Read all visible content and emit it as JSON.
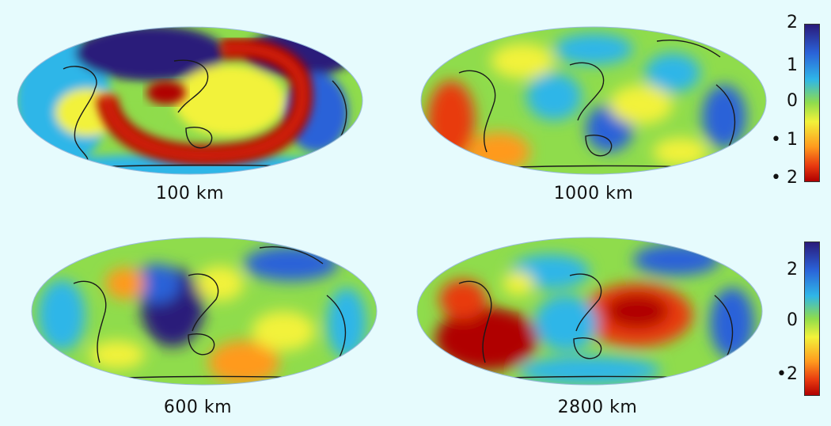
{
  "panels": [
    {
      "depth_label": "100 km"
    },
    {
      "depth_label": "1000 km"
    },
    {
      "depth_label": "600 km"
    },
    {
      "depth_label": "2800 km"
    }
  ],
  "colorbar_top": {
    "ticks": [
      "2",
      "1",
      "0",
      "• 1",
      "• 2"
    ]
  },
  "colorbar_bottom": {
    "ticks": [
      "2",
      "0",
      "•2"
    ]
  },
  "colors": {
    "background": "#e6fbfd",
    "slow_dark": "#b00000",
    "slow": "#e83a10",
    "warm": "#ff9a1e",
    "neutral": "#f2f23a",
    "mid": "#8fdc4c",
    "fast": "#2fb6e8",
    "fast_mid": "#2a62d8",
    "fast_dark": "#2a1a7a"
  }
}
